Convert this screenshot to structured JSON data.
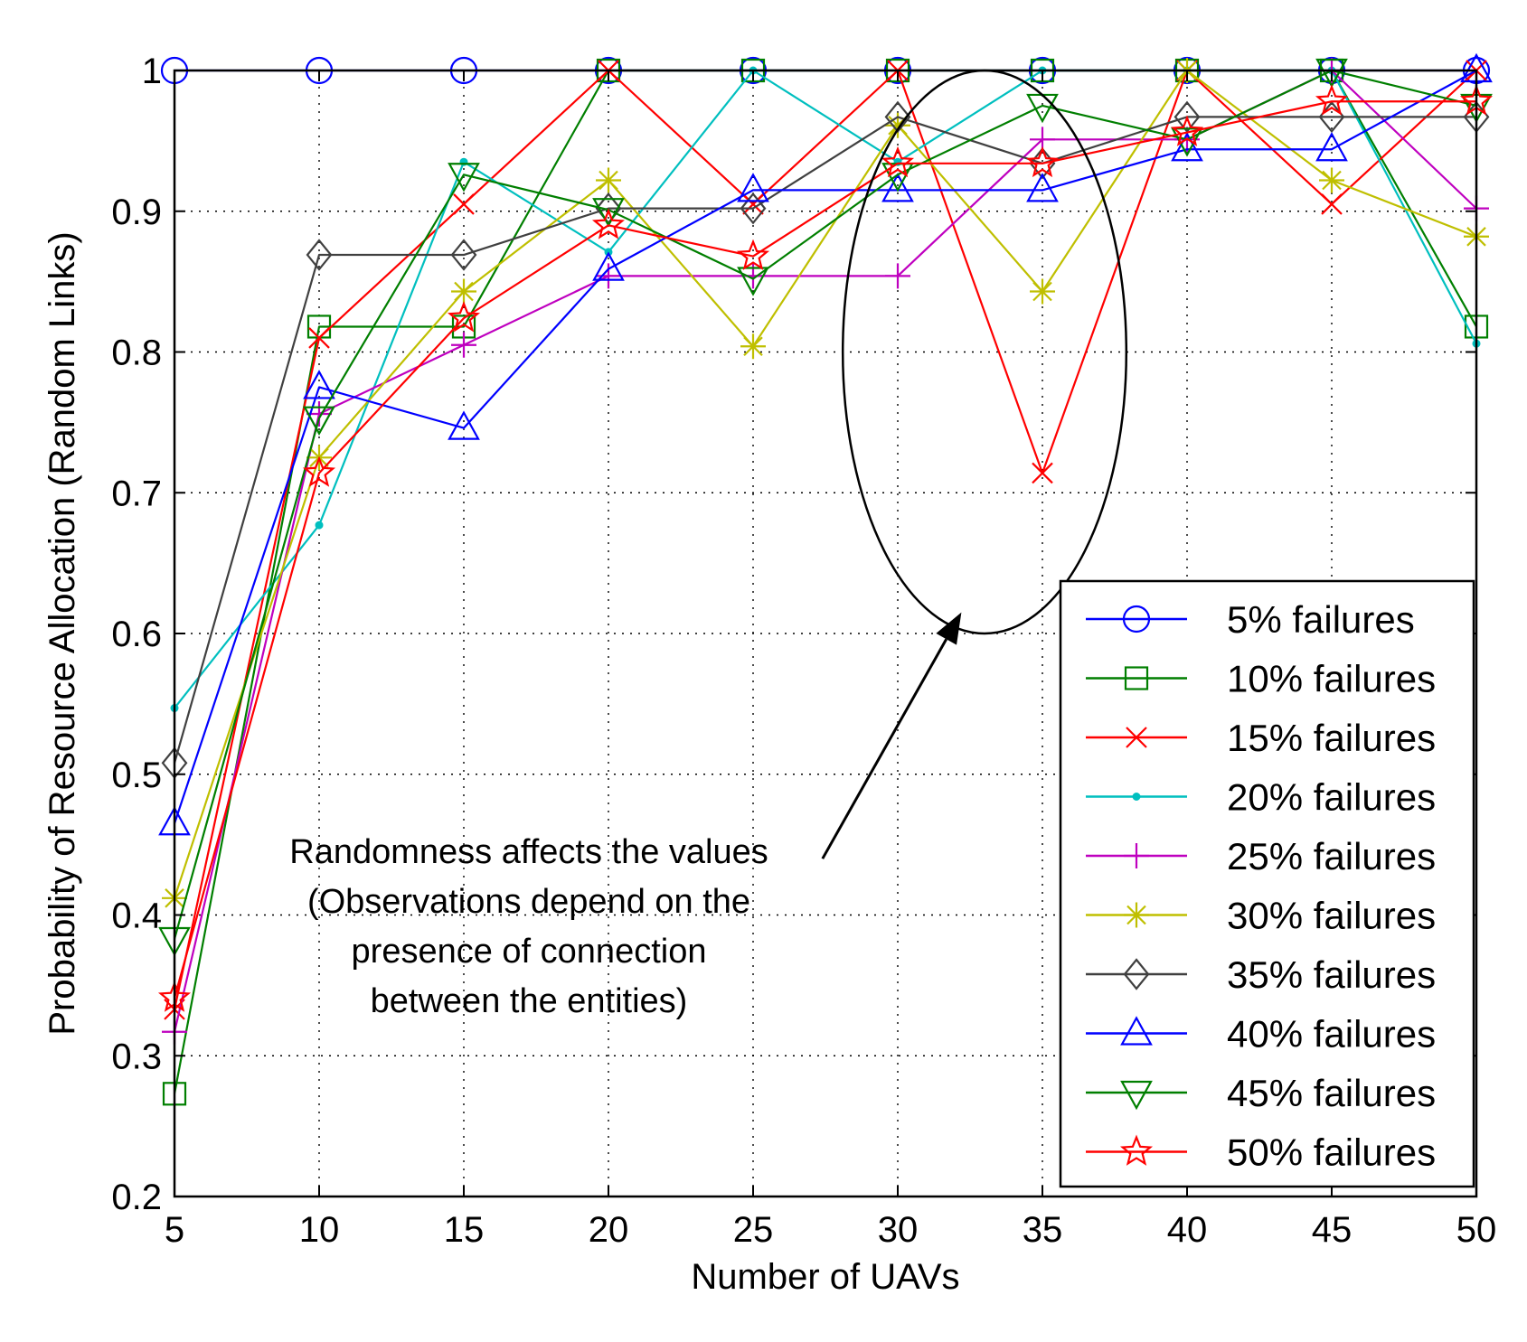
{
  "chart_data": {
    "type": "line",
    "title": "",
    "xlabel": "Number of UAVs",
    "ylabel": "Probability of Resource Allocation  (Random Links)",
    "xlim": [
      5,
      50
    ],
    "ylim": [
      0.2,
      1.0
    ],
    "grid": true,
    "legend_position": "bottom-right",
    "x": [
      5,
      10,
      15,
      20,
      25,
      30,
      35,
      40,
      45,
      50
    ],
    "x_tick_labels": [
      "5",
      "10",
      "15",
      "20",
      "25",
      "30",
      "35",
      "40",
      "45",
      "50"
    ],
    "y_ticks": [
      0.2,
      0.3,
      0.4,
      0.5,
      0.6,
      0.7,
      0.8,
      0.9,
      1.0
    ],
    "y_tick_labels": [
      "0.2",
      "0.3",
      "0.4",
      "0.5",
      "0.6",
      "0.7",
      "0.8",
      "0.9",
      "1"
    ],
    "series": [
      {
        "name": "5% failures",
        "color": "#0000ff",
        "marker": "circle",
        "values": [
          1.0,
          1.0,
          1.0,
          1.0,
          1.0,
          1.0,
          1.0,
          1.0,
          1.0,
          1.0
        ]
      },
      {
        "name": "10% failures",
        "color": "#007f00",
        "marker": "square",
        "values": [
          0.273,
          0.818,
          0.818,
          1.0,
          1.0,
          1.0,
          1.0,
          1.0,
          1.0,
          0.818
        ]
      },
      {
        "name": "15% failures",
        "color": "#ff0000",
        "marker": "x",
        "values": [
          0.333,
          0.81,
          0.905,
          1.0,
          0.905,
          1.0,
          0.714,
          1.0,
          0.905,
          1.0
        ]
      },
      {
        "name": "20% failures",
        "color": "#00bfbf",
        "marker": "dot",
        "values": [
          0.547,
          0.677,
          0.935,
          0.871,
          1.0,
          0.935,
          1.0,
          1.0,
          1.0,
          0.806
        ]
      },
      {
        "name": "25% failures",
        "color": "#bf00bf",
        "marker": "plus",
        "values": [
          0.317,
          0.756,
          0.805,
          0.854,
          0.854,
          0.854,
          0.951,
          0.951,
          1.0,
          0.902
        ]
      },
      {
        "name": "30% failures",
        "color": "#bfbf00",
        "marker": "asterisk",
        "values": [
          0.412,
          0.725,
          0.843,
          0.922,
          0.804,
          0.961,
          0.843,
          1.0,
          0.922,
          0.882
        ]
      },
      {
        "name": "35% failures",
        "color": "#404040",
        "marker": "diamond",
        "values": [
          0.508,
          0.869,
          0.869,
          0.902,
          0.902,
          0.967,
          0.934,
          0.967,
          0.967,
          0.967
        ]
      },
      {
        "name": "40% failures",
        "color": "#0000ff",
        "marker": "triangle-up",
        "values": [
          0.465,
          0.775,
          0.746,
          0.859,
          0.915,
          0.915,
          0.915,
          0.944,
          0.944,
          1.0
        ]
      },
      {
        "name": "45% failures",
        "color": "#007f00",
        "marker": "triangle-down",
        "values": [
          0.383,
          0.753,
          0.926,
          0.901,
          0.852,
          0.926,
          0.975,
          0.951,
          1.0,
          0.975
        ]
      },
      {
        "name": "50% failures",
        "color": "#ff0000",
        "marker": "star",
        "values": [
          0.341,
          0.714,
          0.824,
          0.89,
          0.868,
          0.934,
          0.934,
          0.956,
          0.978,
          0.978
        ]
      }
    ],
    "annotation": {
      "lines": [
        "Randomness affects the values",
        "(Observations depend on the",
        "presence of connection",
        "between the entities)"
      ],
      "ellipse_center_data": [
        33,
        0.8
      ],
      "ellipse_radius_data": [
        4.9,
        0.2
      ],
      "arrow_from_data": [
        27.4,
        0.44
      ],
      "arrow_to_data": [
        32.2,
        0.615
      ]
    }
  }
}
